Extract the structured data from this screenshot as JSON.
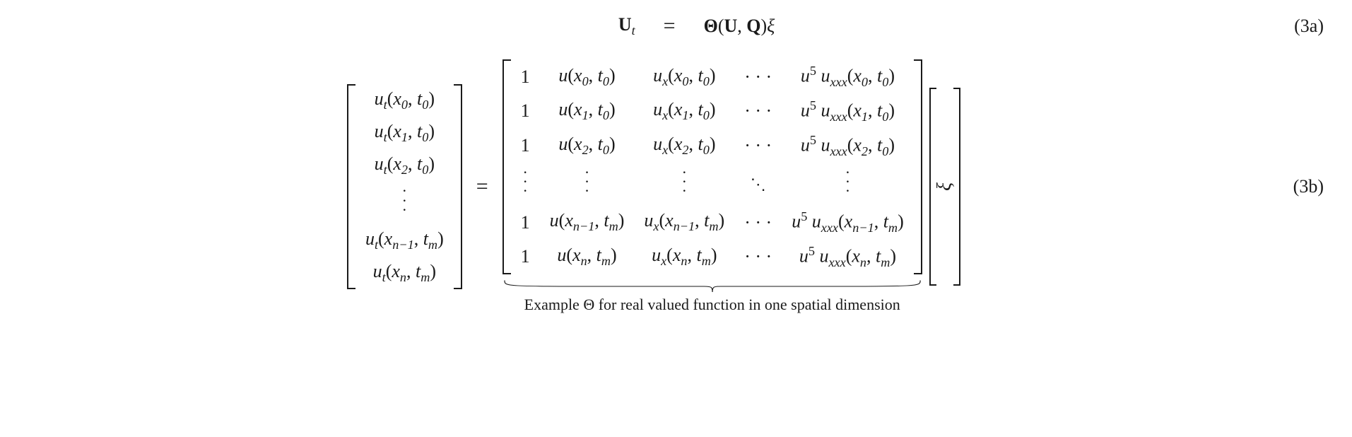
{
  "colors": {
    "text": "#1a1a1a",
    "background": "#ffffff"
  },
  "typography": {
    "family": "Georgia / Times serif",
    "base_size_pt": 20,
    "matrix_cell_size_pt": 20,
    "label_size_pt": 20
  },
  "eq1": {
    "lhs_U": "U",
    "lhs_sub": "t",
    "equals": "=",
    "rhs_Theta": "Θ",
    "rhs_open": "(",
    "rhs_U": "U",
    "rhs_comma": ",",
    "rhs_Q": "Q",
    "rhs_close": ")",
    "rhs_xi": "ξ",
    "label": "(3a)"
  },
  "eq2": {
    "label": "(3b)",
    "equals": "=",
    "lhs_matrix": {
      "type": "column_vector",
      "rows": [
        "u_t(x_0, t_0)",
        "u_t(x_1, t_0)",
        "u_t(x_2, t_0)",
        "vdots",
        "u_t(x_{n-1}, t_m)",
        "u_t(x_n, t_m)"
      ]
    },
    "theta_matrix": {
      "type": "matrix",
      "cols": 5,
      "rows": [
        [
          "1",
          "u(x_0, t_0)",
          "u_x(x_0, t_0)",
          "cdots",
          "u^5 u_{xxx}(x_0, t_0)"
        ],
        [
          "1",
          "u(x_1, t_0)",
          "u_x(x_1, t_0)",
          "cdots",
          "u^5 u_{xxx}(x_1, t_0)"
        ],
        [
          "1",
          "u(x_2, t_0)",
          "u_x(x_2, t_0)",
          "cdots",
          "u^5 u_{xxx}(x_2, t_0)"
        ],
        [
          "vdots",
          "vdots",
          "vdots",
          "ddots",
          "vdots"
        ],
        [
          "1",
          "u(x_{n-1}, t_m)",
          "u_x(x_{n-1}, t_m)",
          "cdots",
          "u^5 u_{xxx}(x_{n-1}, t_m)"
        ],
        [
          "1",
          "u(x_n, t_m)",
          "u_x(x_n, t_m)",
          "cdots",
          "u^5 u_{xxx}(x_n, t_m)"
        ]
      ]
    },
    "xi_vector": {
      "symbol": "ξ"
    },
    "underbrace_text": "Example Θ for real valued function in one spatial dimension"
  }
}
